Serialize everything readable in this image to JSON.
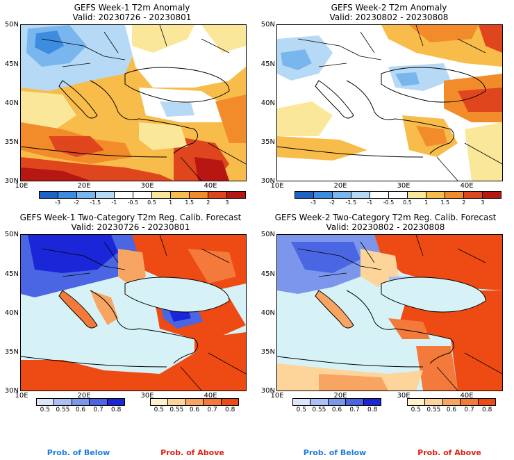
{
  "panels": [
    {
      "title": "GEFS Week-1 T2m Anomaly",
      "valid": "Valid: 20230726 - 20230801"
    },
    {
      "title": "GEFS Week-2 T2m Anomaly",
      "valid": "Valid: 20230802 - 20230808"
    },
    {
      "title": "GEFS Week-1 Two-Category T2m Reg. Calib. Forecast",
      "valid": "Valid: 20230726 - 20230801"
    },
    {
      "title": "GEFS Week-2 Two-Category T2m Reg. Calib. Forecast",
      "valid": "Valid: 20230802 - 20230808"
    }
  ],
  "axes": {
    "lat_labels": [
      "50N",
      "45N",
      "40N",
      "35N",
      "30N"
    ],
    "lon_labels": [
      "10E",
      "20E",
      "30E",
      "40E"
    ]
  },
  "anomaly_colorbar": {
    "ticks": [
      "-3",
      "-2",
      "-1.5",
      "-1",
      "-0.5",
      "0.5",
      "1",
      "1.5",
      "2",
      "3"
    ],
    "colors": [
      "#1e62c6",
      "#3c8ce0",
      "#7ab6ee",
      "#b6daf6",
      "#ffffff",
      "#ffffff",
      "#fbe79a",
      "#f7bc4a",
      "#f28b2a",
      "#e0461e",
      "#b81612"
    ]
  },
  "prob_colorbar": {
    "below_ticks": [
      "0.5",
      "0.55",
      "0.6",
      "0.7",
      "0.8"
    ],
    "above_ticks": [
      "0.5",
      "0.55",
      "0.6",
      "0.7",
      "0.8"
    ],
    "below_colors": [
      "#dce6fb",
      "#a9bff5",
      "#7c96ec",
      "#4a66e2",
      "#1a26d8"
    ],
    "above_colors": [
      "#fff1c8",
      "#fdd59a",
      "#f8a564",
      "#f37a3a",
      "#ee4a14"
    ],
    "below_label": "Prob. of Below",
    "above_label": "Prob. of Above",
    "below_label_color": "#1e7be0",
    "above_label_color": "#e02010"
  }
}
